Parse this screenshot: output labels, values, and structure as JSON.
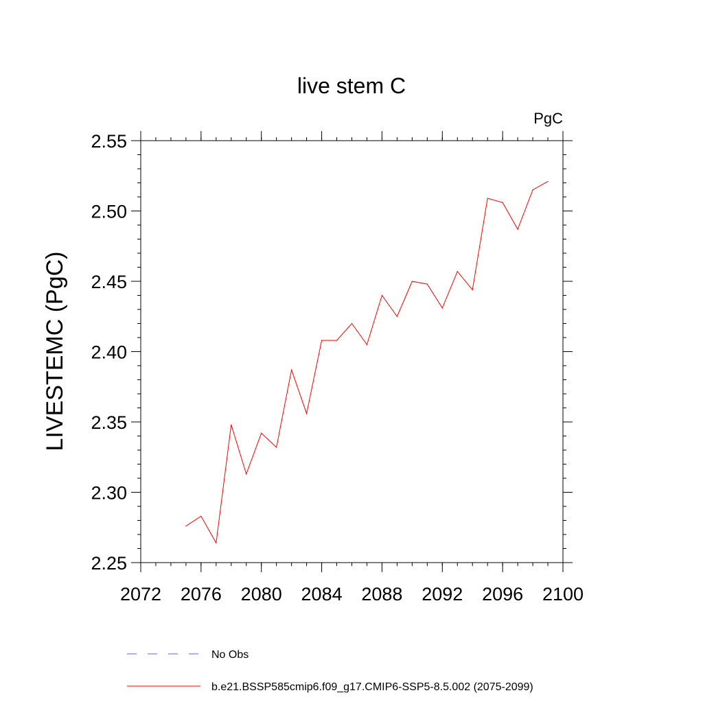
{
  "chart_data": {
    "type": "line",
    "title": "live stem C",
    "units_label": "PgC",
    "ylabel": "LIVESTEMC  (PgC)",
    "xlabel": "",
    "xlim": [
      2072,
      2100
    ],
    "ylim": [
      2.25,
      2.55
    ],
    "x_ticks": [
      2072,
      2076,
      2080,
      2084,
      2088,
      2092,
      2096,
      2100
    ],
    "x_tick_labels": [
      "2072",
      "2076",
      "2080",
      "2084",
      "2088",
      "2092",
      "2096",
      "2100"
    ],
    "y_ticks": [
      2.25,
      2.3,
      2.35,
      2.4,
      2.45,
      2.5,
      2.55
    ],
    "y_tick_labels": [
      "2.25",
      "2.30",
      "2.35",
      "2.40",
      "2.45",
      "2.50",
      "2.55"
    ],
    "grid": false,
    "legend_placement": "bottom-left",
    "series": [
      {
        "name": "b.e21.BSSP585cmip6.f09_g17.CMIP6-SSP5-8.5.002 (2075-2099)",
        "color": "#ff0000",
        "x": [
          2075,
          2076,
          2077,
          2078,
          2079,
          2080,
          2081,
          2082,
          2083,
          2084,
          2085,
          2086,
          2087,
          2088,
          2089,
          2090,
          2091,
          2092,
          2093,
          2094,
          2095,
          2096,
          2097,
          2098,
          2099
        ],
        "y": [
          2.276,
          2.283,
          2.264,
          2.348,
          2.313,
          2.342,
          2.332,
          2.387,
          2.356,
          2.408,
          2.408,
          2.42,
          2.405,
          2.44,
          2.425,
          2.45,
          2.448,
          2.431,
          2.457,
          2.444,
          2.509,
          2.506,
          2.487,
          2.515,
          2.521
        ]
      }
    ],
    "legend": [
      {
        "label": "No Obs",
        "color": "#6a5acd",
        "style": "dashed"
      },
      {
        "label": "b.e21.BSSP585cmip6.f09_g17.CMIP6-SSP5-8.5.002 (2075-2099)",
        "color": "#ff0000",
        "style": "solid"
      }
    ]
  }
}
